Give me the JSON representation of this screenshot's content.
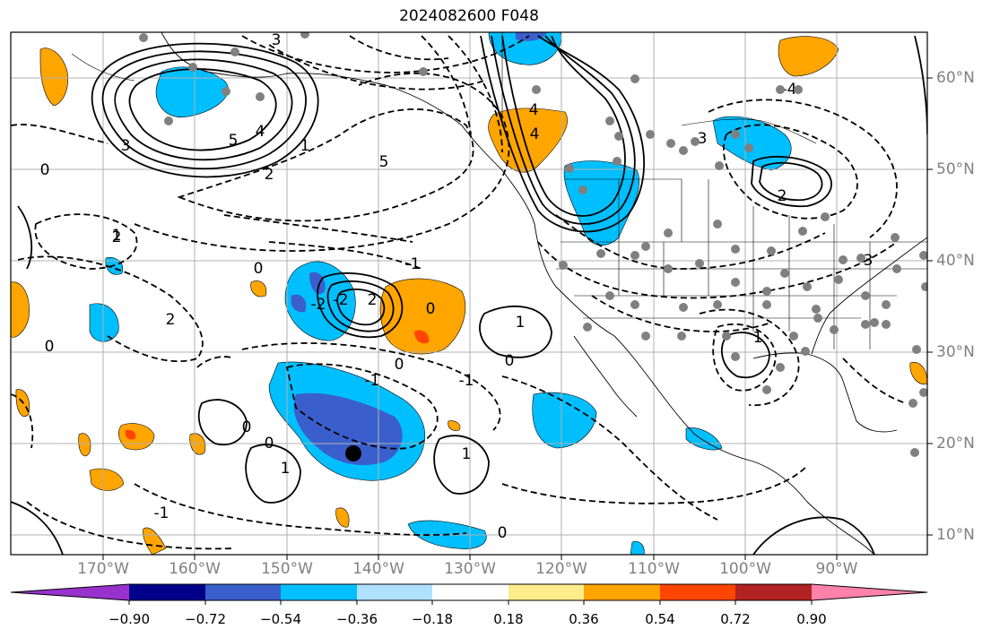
{
  "title": "2024082600 F048",
  "map": {
    "lat_labels": [
      "60°N",
      "50°N",
      "40°N",
      "30°N",
      "20°N",
      "10°N"
    ],
    "lon_labels": [
      "170°W",
      "160°W",
      "150°W",
      "140°W",
      "130°W",
      "120°W",
      "110°W",
      "100°W",
      "90°W"
    ],
    "contour_labels": [
      {
        "text": "5"
      },
      {
        "text": "4"
      },
      {
        "text": "3"
      },
      {
        "text": "2"
      },
      {
        "text": "1"
      },
      {
        "text": "0"
      },
      {
        "text": "5"
      },
      {
        "text": "4"
      },
      {
        "text": "2"
      },
      {
        "text": "0"
      },
      {
        "text": "-2"
      },
      {
        "text": "-1"
      },
      {
        "text": "0"
      },
      {
        "text": "2"
      },
      {
        "text": "-2"
      },
      {
        "text": "2"
      },
      {
        "text": "0"
      },
      {
        "text": "1"
      },
      {
        "text": "-1"
      },
      {
        "text": "0"
      },
      {
        "text": "1"
      },
      {
        "text": "1"
      },
      {
        "text": "0"
      },
      {
        "text": "-1"
      },
      {
        "text": "3"
      },
      {
        "text": "-3"
      },
      {
        "text": "2"
      },
      {
        "text": "0"
      },
      {
        "text": "1"
      },
      {
        "text": "0"
      },
      {
        "text": "1"
      },
      {
        "text": "-1"
      },
      {
        "text": "3"
      },
      {
        "text": "-4"
      },
      {
        "text": "4"
      },
      {
        "text": "0"
      }
    ],
    "colors": {
      "negative": [
        "#9932CC",
        "#00008B",
        "#3A5FCD",
        "#00BFFF",
        "#B0E2FF"
      ],
      "positive": [
        "#FFEC8B",
        "#FFA500",
        "#FF4500",
        "#B22222",
        "#FF82AB"
      ],
      "solid_contour": "#000000",
      "station_marker": "#808080"
    }
  },
  "colorbar": {
    "ticks": [
      "−0.90",
      "−0.72",
      "−0.54",
      "−0.36",
      "−0.18",
      "0.18",
      "0.36",
      "0.54",
      "0.72",
      "0.90"
    ],
    "colors": [
      "#9932CC",
      "#00008B",
      "#3A5FCD",
      "#00BFFF",
      "#B0E2FF",
      "#FFFFFF",
      "#FFEC8B",
      "#FFA500",
      "#FF4500",
      "#B22222",
      "#FF82AB"
    ]
  }
}
